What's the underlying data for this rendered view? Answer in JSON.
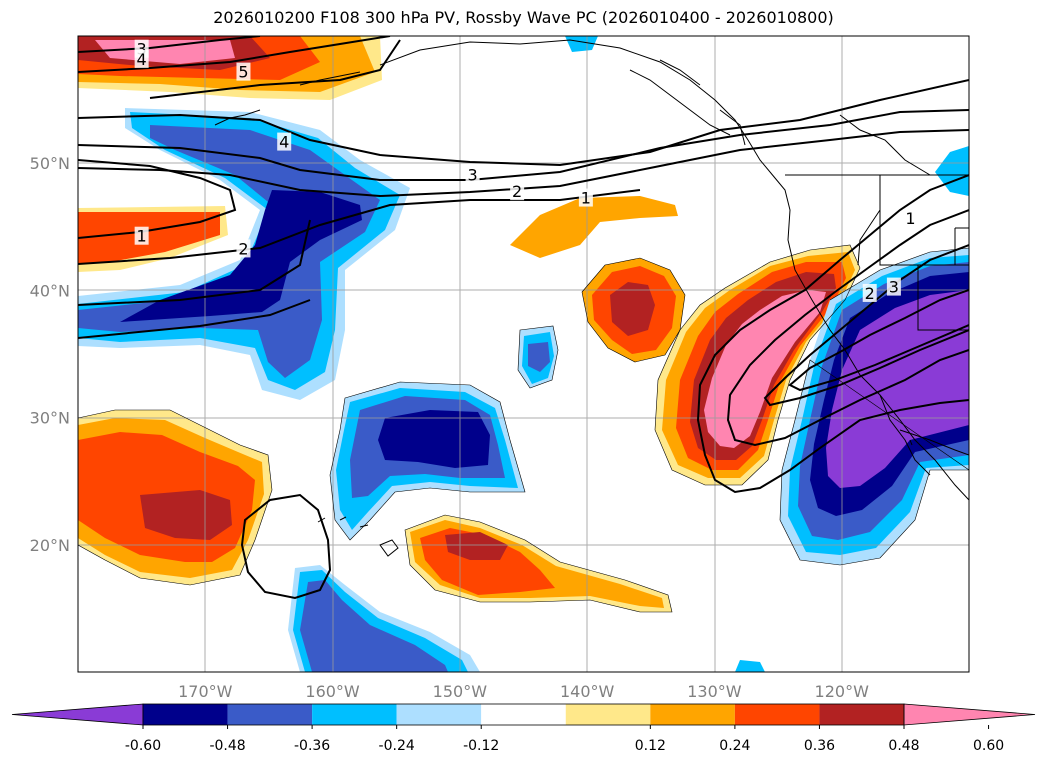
{
  "title": "2026010200 F108 300 hPa PV, Rossby Wave PC (2026010400 - 2026010800)",
  "map": {
    "projection": "cylindrical",
    "lon_range": [
      -180,
      -110
    ],
    "lat_range": [
      10,
      60
    ],
    "lat_ticks": [
      {
        "lat": 50,
        "label": "50°N"
      },
      {
        "lat": 40,
        "label": "40°N"
      },
      {
        "lat": 30,
        "label": "30°N"
      },
      {
        "lat": 20,
        "label": "20°N"
      }
    ],
    "lon_ticks": [
      {
        "lon": -170,
        "label": "170°W"
      },
      {
        "lon": -160,
        "label": "160°W"
      },
      {
        "lon": -150,
        "label": "150°W"
      },
      {
        "lon": -140,
        "label": "140°W"
      },
      {
        "lon": -130,
        "label": "130°W"
      },
      {
        "lon": -120,
        "label": "120°W"
      }
    ],
    "grid": true,
    "tick_label_color": "#808080",
    "contour_labels": [
      {
        "text": "3",
        "lon": -175,
        "lat": 59
      },
      {
        "text": "4",
        "lon": -175,
        "lat": 58.2
      },
      {
        "text": "5",
        "lon": -167,
        "lat": 57.2
      },
      {
        "text": "4",
        "lon": -163.8,
        "lat": 51.7
      },
      {
        "text": "3",
        "lon": -149,
        "lat": 49.1
      },
      {
        "text": "2",
        "lon": -145.5,
        "lat": 47.8
      },
      {
        "text": "1",
        "lon": -140.1,
        "lat": 47.3
      },
      {
        "text": "1",
        "lon": -175,
        "lat": 44.3
      },
      {
        "text": "2",
        "lon": -167,
        "lat": 43.3
      },
      {
        "text": "1",
        "lon": -114.6,
        "lat": 45.7
      },
      {
        "text": "2",
        "lon": -117.8,
        "lat": 39.8
      },
      {
        "text": "3",
        "lon": -115.9,
        "lat": 40.3
      }
    ]
  },
  "colorbar": {
    "ticks": [
      "-0.60",
      "-0.48",
      "-0.36",
      "-0.24",
      "-0.12",
      "0.12",
      "0.24",
      "0.36",
      "0.48",
      "0.60"
    ],
    "colors": [
      "#8A3BD6",
      "#00008B",
      "#3A5BC8",
      "#00BFFF",
      "#ADDFFF",
      "#FFFFFF",
      "#FFE88A",
      "#FFA500",
      "#FF4500",
      "#B22222",
      "#FF85B0"
    ],
    "extend": "both"
  },
  "anomaly_colors": {
    "neg_strong": "#8A3BD6",
    "neg_4": "#00008B",
    "neg_3": "#3A5BC8",
    "neg_2": "#00BFFF",
    "neg_1": "#ADDFFF",
    "pos_1": "#FFE88A",
    "pos_2": "#FFA500",
    "pos_3": "#FF4500",
    "pos_4": "#B22222",
    "pos_strong": "#FF85B0"
  }
}
